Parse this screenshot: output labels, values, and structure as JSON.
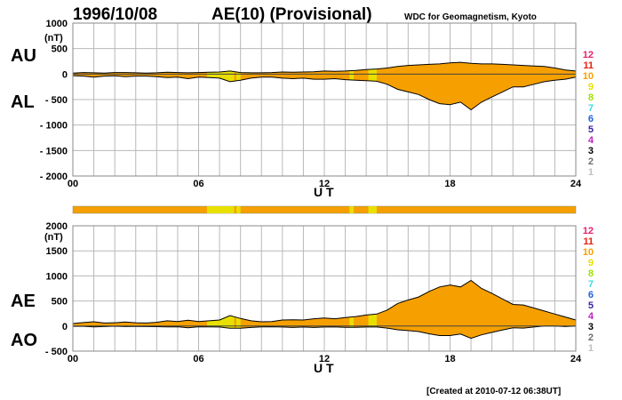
{
  "header": {
    "date": "1996/10/08",
    "title": "AE(10) (Provisional)",
    "source": "WDC for Geomagnetism, Kyoto"
  },
  "footer": {
    "created": "[Created at 2010-07-12 06:38UT]"
  },
  "unit_label": "(nT)",
  "legend": {
    "items": [
      {
        "label": "12",
        "color": "#e8206c"
      },
      {
        "label": "11",
        "color": "#e8200c"
      },
      {
        "label": "10",
        "color": "#f5a000"
      },
      {
        "label": "9",
        "color": "#e8e000"
      },
      {
        "label": "8",
        "color": "#a0e000"
      },
      {
        "label": "7",
        "color": "#40d8e0"
      },
      {
        "label": "6",
        "color": "#2060e0"
      },
      {
        "label": "5",
        "color": "#4020a0"
      },
      {
        "label": "4",
        "color": "#c020c0"
      },
      {
        "label": "3",
        "color": "#000000"
      },
      {
        "label": "2",
        "color": "#707070"
      },
      {
        "label": "1",
        "color": "#c0c0c0"
      }
    ]
  },
  "chart_data": [
    {
      "type": "area",
      "name": "AU/AL",
      "series_labels": [
        "AU",
        "AL"
      ],
      "xlabel": "U T",
      "ylabel": "(nT)",
      "x_ticks": [
        "00",
        "06",
        "12",
        "18",
        "24"
      ],
      "y_ticks": [
        "1000",
        "500",
        "0",
        "- 500",
        "- 1000",
        "- 1500",
        "- 2000"
      ],
      "xlim": [
        0,
        24
      ],
      "ylim": [
        -2000,
        1000
      ],
      "grid": true,
      "fill_color": "#f5a000",
      "x": [
        0,
        0.5,
        1,
        1.5,
        2,
        2.5,
        3,
        3.5,
        4,
        4.5,
        5,
        5.5,
        6,
        6.5,
        7,
        7.5,
        8,
        8.5,
        9,
        9.5,
        10,
        10.5,
        11,
        11.5,
        12,
        12.5,
        13,
        13.5,
        14,
        14.5,
        15,
        15.5,
        16,
        16.5,
        17,
        17.5,
        18,
        18.5,
        19,
        19.5,
        20,
        20.5,
        21,
        21.5,
        22,
        22.5,
        23,
        23.5,
        24
      ],
      "AU": [
        20,
        30,
        25,
        20,
        30,
        30,
        25,
        20,
        25,
        35,
        30,
        25,
        30,
        35,
        40,
        60,
        30,
        25,
        25,
        30,
        40,
        35,
        40,
        45,
        60,
        55,
        60,
        70,
        90,
        100,
        120,
        150,
        170,
        180,
        190,
        200,
        220,
        230,
        210,
        200,
        200,
        190,
        180,
        170,
        160,
        150,
        120,
        80,
        60
      ],
      "AL": [
        -30,
        -40,
        -60,
        -40,
        -35,
        -50,
        -40,
        -40,
        -50,
        -70,
        -60,
        -90,
        -60,
        -70,
        -80,
        -150,
        -120,
        -80,
        -60,
        -60,
        -80,
        -90,
        -80,
        -100,
        -100,
        -90,
        -110,
        -120,
        -130,
        -140,
        -200,
        -300,
        -350,
        -400,
        -500,
        -580,
        -600,
        -550,
        -700,
        -550,
        -450,
        -350,
        -250,
        -250,
        -200,
        -150,
        -120,
        -100,
        -60
      ],
      "highlight_ranges": [
        {
          "from": 6.4,
          "to": 7.7,
          "color": "#e8e000"
        },
        {
          "from": 7.8,
          "to": 8.0,
          "color": "#e8e000"
        },
        {
          "from": 13.2,
          "to": 13.4,
          "color": "#e8e000"
        },
        {
          "from": 14.1,
          "to": 14.5,
          "color": "#e8e000"
        }
      ]
    },
    {
      "type": "area",
      "name": "AE/AO",
      "series_labels": [
        "AE",
        "AO"
      ],
      "xlabel": "U T",
      "ylabel": "(nT)",
      "x_ticks": [
        "00",
        "06",
        "12",
        "18",
        "24"
      ],
      "y_ticks": [
        "2000",
        "1500",
        "1000",
        "500",
        "0",
        "- 500"
      ],
      "xlim": [
        0,
        24
      ],
      "ylim": [
        -500,
        2000
      ],
      "grid": true,
      "fill_color": "#f5a000",
      "x": [
        0,
        0.5,
        1,
        1.5,
        2,
        2.5,
        3,
        3.5,
        4,
        4.5,
        5,
        5.5,
        6,
        6.5,
        7,
        7.5,
        8,
        8.5,
        9,
        9.5,
        10,
        10.5,
        11,
        11.5,
        12,
        12.5,
        13,
        13.5,
        14,
        14.5,
        15,
        15.5,
        16,
        16.5,
        17,
        17.5,
        18,
        18.5,
        19,
        19.5,
        20,
        20.5,
        21,
        21.5,
        22,
        22.5,
        23,
        23.5,
        24
      ],
      "AE": [
        50,
        70,
        85,
        60,
        65,
        80,
        65,
        60,
        75,
        105,
        90,
        115,
        90,
        105,
        120,
        210,
        150,
        105,
        85,
        90,
        120,
        125,
        120,
        145,
        160,
        145,
        170,
        190,
        220,
        240,
        320,
        450,
        520,
        580,
        690,
        780,
        820,
        780,
        910,
        750,
        650,
        540,
        430,
        420,
        360,
        300,
        240,
        180,
        120
      ],
      "AO": [
        -5,
        -5,
        -18,
        -10,
        -3,
        -10,
        -8,
        -10,
        -13,
        -18,
        -15,
        -33,
        -15,
        -18,
        -20,
        -45,
        -45,
        -28,
        -18,
        -15,
        -20,
        -28,
        -20,
        -28,
        -20,
        -18,
        -25,
        -25,
        -20,
        -20,
        -40,
        -75,
        -90,
        -110,
        -155,
        -190,
        -190,
        -160,
        -245,
        -175,
        -125,
        -80,
        -35,
        -40,
        -20,
        0,
        0,
        -10,
        0
      ],
      "highlight_ranges": [
        {
          "from": 6.4,
          "to": 7.7,
          "color": "#e8e000"
        },
        {
          "from": 7.8,
          "to": 8.0,
          "color": "#e8e000"
        },
        {
          "from": 13.2,
          "to": 13.4,
          "color": "#e8e000"
        },
        {
          "from": 14.1,
          "to": 14.5,
          "color": "#e8e000"
        }
      ]
    }
  ]
}
